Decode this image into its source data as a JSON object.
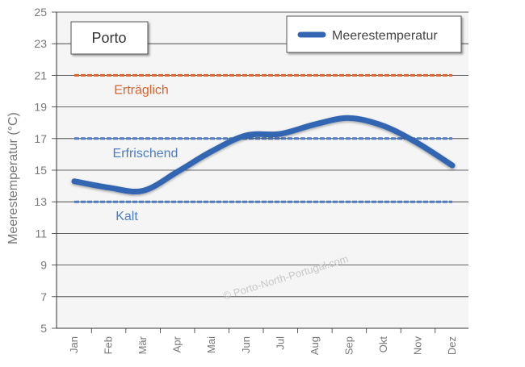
{
  "chart_data": {
    "type": "line",
    "title": "Porto",
    "ylabel": "Meerestemperatur (°C)",
    "xlabel": "",
    "ylim": [
      5,
      25
    ],
    "yticks": [
      5,
      7,
      9,
      11,
      13,
      15,
      17,
      19,
      21,
      23,
      25
    ],
    "categories": [
      "Jan",
      "Feb",
      "Mär",
      "Apr",
      "Mai",
      "Jun",
      "Jul",
      "Aug",
      "Sep",
      "Okt",
      "Nov",
      "Dez"
    ],
    "series": [
      {
        "name": "Meerestemperatur",
        "values": [
          14.3,
          13.9,
          13.7,
          14.9,
          16.2,
          17.2,
          17.3,
          17.9,
          18.3,
          17.8,
          16.7,
          15.3
        ],
        "color": "#3366b3"
      }
    ],
    "legend": "top-right",
    "grid": true,
    "reference_lines": [
      {
        "label": "Erträglich",
        "value": 21,
        "color": "#e0602a"
      },
      {
        "label": "Erfrischend",
        "value": 17,
        "color": "#4d7cc4"
      },
      {
        "label": "Kalt",
        "value": 13,
        "color": "#4d7cc4"
      }
    ],
    "watermark": "© Porto-North-Portugal.com"
  }
}
